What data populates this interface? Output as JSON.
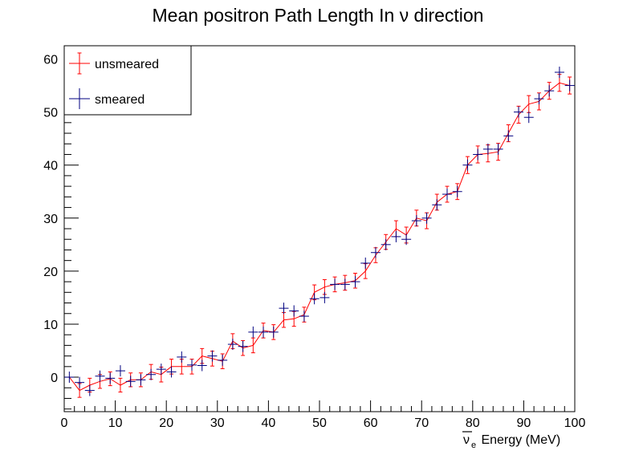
{
  "chart_data": {
    "type": "line",
    "title": "Mean positron Path Length In   ν direction",
    "xlabel_prefix": "ν",
    "xlabel_sub": "e",
    "xlabel_suffix": " Energy (MeV)",
    "ylabel": "",
    "xlim": [
      0,
      100
    ],
    "ylim": [
      -6.5,
      62.5
    ],
    "x_ticks": [
      0,
      10,
      20,
      30,
      40,
      50,
      60,
      70,
      80,
      90,
      100
    ],
    "y_ticks": [
      0,
      10,
      20,
      30,
      40,
      50,
      60
    ],
    "grid": false,
    "legend_position": "top-left",
    "x": [
      1,
      3,
      5,
      7,
      9,
      11,
      13,
      15,
      17,
      19,
      21,
      23,
      25,
      27,
      29,
      31,
      33,
      35,
      37,
      39,
      41,
      43,
      45,
      47,
      49,
      51,
      53,
      55,
      57,
      59,
      61,
      63,
      65,
      67,
      69,
      71,
      73,
      75,
      77,
      79,
      81,
      83,
      85,
      87,
      89,
      91,
      93,
      95,
      97,
      99
    ],
    "series": [
      {
        "name": "unsmeared",
        "color": "#ff0000",
        "style": "line-with-errorbars",
        "values": [
          0.0,
          -2.5,
          -1.5,
          -0.8,
          -0.3,
          -1.5,
          -0.5,
          -0.5,
          1.0,
          0.5,
          2.0,
          2.0,
          2.0,
          4.0,
          3.5,
          3.0,
          6.8,
          5.5,
          6.0,
          8.8,
          8.5,
          10.8,
          11.0,
          11.8,
          16.0,
          17.0,
          17.5,
          17.8,
          18.2,
          20.0,
          23.0,
          25.5,
          28.0,
          26.8,
          30.0,
          29.5,
          33.0,
          34.5,
          35.0,
          40.0,
          42.0,
          42.2,
          42.5,
          46.0,
          49.5,
          51.5,
          52.0,
          54.0,
          55.5,
          55.0
        ],
        "errors": [
          0.0,
          1.3,
          1.3,
          1.3,
          1.3,
          1.3,
          1.3,
          1.3,
          1.4,
          1.4,
          1.4,
          1.4,
          1.4,
          1.4,
          1.4,
          1.4,
          1.4,
          1.4,
          1.4,
          1.4,
          1.4,
          1.4,
          1.4,
          1.4,
          1.4,
          1.4,
          1.4,
          1.4,
          1.4,
          1.4,
          1.4,
          1.4,
          1.5,
          1.5,
          1.5,
          1.5,
          1.5,
          1.5,
          1.5,
          1.6,
          1.6,
          1.6,
          1.6,
          1.6,
          1.6,
          1.6,
          1.6,
          1.6,
          1.6,
          1.6
        ]
      },
      {
        "name": "smeared",
        "color": "#000080",
        "style": "cross-markers",
        "values": [
          0.0,
          -1.0,
          -2.5,
          0.2,
          -0.2,
          1.2,
          -0.8,
          -0.5,
          0.5,
          1.5,
          1.0,
          3.8,
          2.3,
          2.2,
          4.0,
          3.2,
          6.2,
          5.8,
          8.5,
          8.5,
          8.5,
          13.0,
          12.5,
          11.5,
          14.8,
          15.0,
          17.5,
          17.5,
          18.0,
          21.5,
          23.5,
          25.0,
          26.5,
          26.0,
          29.5,
          30.0,
          32.5,
          34.5,
          35.0,
          40.0,
          42.0,
          43.0,
          43.0,
          45.5,
          50.0,
          49.0,
          52.5,
          54.0,
          57.5,
          55.0
        ]
      }
    ]
  }
}
